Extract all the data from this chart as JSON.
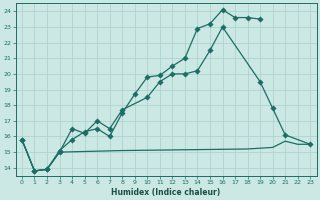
{
  "xlabel": "Humidex (Indice chaleur)",
  "bg_color": "#cce8e5",
  "grid_color": "#aacfcc",
  "line_color": "#1a6e63",
  "xlim": [
    -0.5,
    23.5
  ],
  "ylim": [
    13.5,
    24.5
  ],
  "xticks": [
    0,
    1,
    2,
    3,
    4,
    5,
    6,
    7,
    8,
    9,
    10,
    11,
    12,
    13,
    14,
    15,
    16,
    17,
    18,
    19,
    20,
    21,
    22,
    23
  ],
  "yticks": [
    14,
    15,
    16,
    17,
    18,
    19,
    20,
    21,
    22,
    23,
    24
  ],
  "line1_x": [
    0,
    1,
    2,
    3,
    4,
    5,
    6,
    7,
    8,
    9,
    10,
    11,
    12,
    13,
    14,
    15,
    16,
    17,
    18,
    19
  ],
  "line1_y": [
    15.8,
    13.8,
    13.9,
    15.1,
    15.8,
    16.3,
    16.5,
    16.0,
    17.5,
    18.7,
    19.8,
    19.9,
    20.5,
    21.0,
    22.9,
    23.2,
    24.1,
    23.6,
    23.6,
    23.5
  ],
  "line2_x": [
    0,
    1,
    2,
    3,
    4,
    5,
    6,
    7,
    8,
    10,
    11,
    12,
    13,
    14,
    15,
    16,
    19,
    20,
    21,
    23
  ],
  "line2_y": [
    15.8,
    13.8,
    13.9,
    15.0,
    16.5,
    16.2,
    17.0,
    16.5,
    17.7,
    18.5,
    19.5,
    20.0,
    20.0,
    20.2,
    21.5,
    23.0,
    19.5,
    17.8,
    16.1,
    15.5
  ],
  "line3_x": [
    0,
    1,
    2,
    3,
    8,
    18,
    20,
    21,
    22,
    23
  ],
  "line3_y": [
    15.8,
    13.8,
    13.9,
    15.0,
    15.1,
    15.2,
    15.3,
    15.7,
    15.5,
    15.5
  ]
}
